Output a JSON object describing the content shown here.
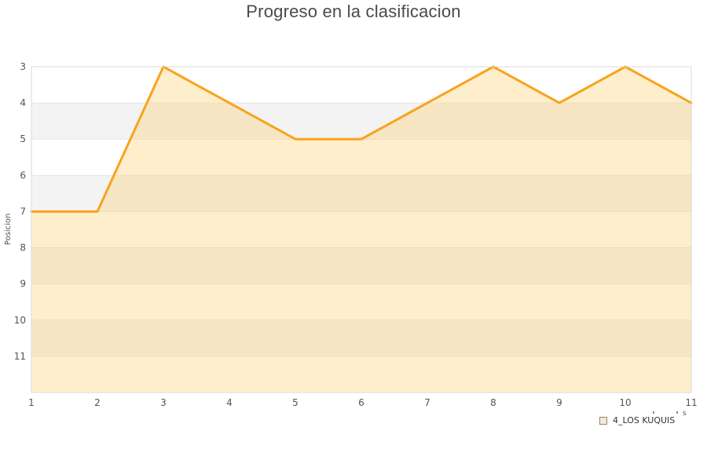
{
  "title": "Progreso en la clasificacion",
  "legend": {
    "label": "4_LOS KUQUIS"
  },
  "clipped_label_fragment": "s",
  "colors": {
    "line": "#F9A31C",
    "area_fill": "rgba(251,205,106,0.35)",
    "stripe_alt": "#f3f3f3",
    "stripe_base": "#ffffff",
    "gridline": "#e7e7e7",
    "plot_border": "#d9d9d9",
    "tick_text": "#545454",
    "axis_title_text": "#555555",
    "title_text": "#4a4a4a",
    "legend_marker_fill": "#fbe9c6",
    "legend_marker_border": "#8a8a8a"
  },
  "chart_data": {
    "type": "area",
    "title": "Progreso en la clasificacion",
    "xlabel": "",
    "ylabel": "Posicion",
    "x": [
      1,
      2,
      3,
      4,
      5,
      6,
      7,
      8,
      9,
      10,
      11
    ],
    "series": [
      {
        "name": "4_LOS KUQUIS",
        "values": [
          7,
          7,
          3,
          4,
          5,
          5,
          4,
          3,
          4,
          3,
          4
        ]
      }
    ],
    "x_ticks": [
      1,
      2,
      3,
      4,
      5,
      6,
      7,
      8,
      9,
      10,
      11
    ],
    "y_ticks": [
      3,
      4,
      5,
      6,
      7,
      8,
      9,
      10,
      11
    ],
    "xlim": [
      1,
      11
    ],
    "ylim": [
      3,
      12
    ],
    "y_axis_reversed": true,
    "grid": true,
    "zebra_stripes": true,
    "legend_position": "bottom-right"
  }
}
